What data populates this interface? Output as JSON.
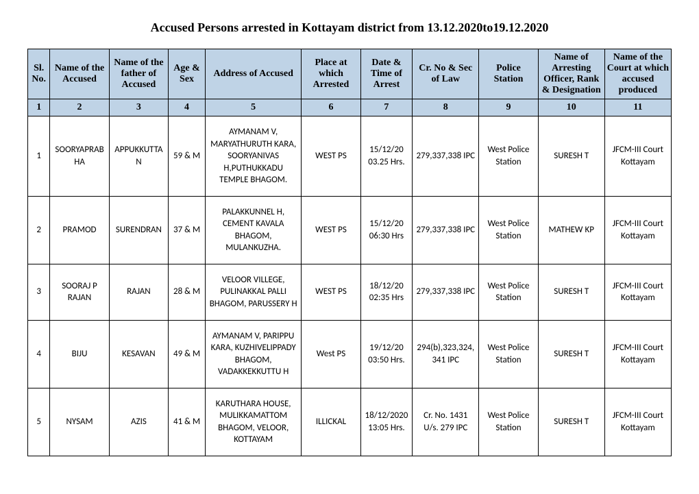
{
  "title": "Accused Persons arrested in  Kottayam  district from  13.12.2020to19.12.2020",
  "table": {
    "header_bg": "#bfd3e6",
    "border_color": "#000000",
    "columns": [
      {
        "label": "Sl. No.",
        "num": "1"
      },
      {
        "label": "Name of the Accused",
        "num": "2"
      },
      {
        "label": "Name of the father of Accused",
        "num": "3"
      },
      {
        "label": "Age & Sex",
        "num": "4"
      },
      {
        "label": "Address of Accused",
        "num": "5"
      },
      {
        "label": "Place at which Arrested",
        "num": "6"
      },
      {
        "label": "Date & Time of Arrest",
        "num": "7"
      },
      {
        "label": "Cr. No & Sec of Law",
        "num": "8"
      },
      {
        "label": "Police Station",
        "num": "9"
      },
      {
        "label": "Name of Arresting Officer, Rank & Designation",
        "num": "10"
      },
      {
        "label": "Name of the Court at which accused produced",
        "num": "11"
      }
    ],
    "rows": [
      {
        "sl": "1",
        "name": "SOORYAPRABHA",
        "father": "APPUKKUTTAN",
        "age_sex": "59 & M",
        "address": "AYMANAM V, MARYATHURUTH KARA, SOORYANIVAS H,PUTHUKKADU TEMPLE BHAGOM.",
        "place": "WEST PS",
        "datetime": "15/12/20 03.25 Hrs.",
        "crno": "279,337,338 IPC",
        "ps": "West Police Station",
        "officer": "SURESH T",
        "court": "JFCM-III Court Kottayam"
      },
      {
        "sl": "2",
        "name": "PRAMOD",
        "father": "SURENDRAN",
        "age_sex": "37 & M",
        "address": "PALAKKUNNEL H, CEMENT KAVALA BHAGOM, MULANKUZHA.",
        "place": "WEST PS",
        "datetime": "15/12/20 06:30 Hrs",
        "crno": "279,337,338 IPC",
        "ps": "West Police Station",
        "officer": "MATHEW KP",
        "court": "JFCM-III Court Kottayam"
      },
      {
        "sl": "3",
        "name": "SOORAJ P RAJAN",
        "father": "RAJAN",
        "age_sex": "28 & M",
        "address": "VELOOR VILLEGE, PULINAKKAL PALLI BHAGOM, PARUSSERY H",
        "place": "WEST PS",
        "datetime": "18/12/20 02:35 Hrs",
        "crno": "279,337,338 IPC",
        "ps": "West Police Station",
        "officer": "SURESH T",
        "court": "JFCM-III Court Kottayam"
      },
      {
        "sl": "4",
        "name": "BIJU",
        "father": "KESAVAN",
        "age_sex": "49 & M",
        "address": "AYMANAM V, PARIPPU KARA, KUZHIVELIPPADY BHAGOM, VADAKKEKKUTTU H",
        "place": "West PS",
        "datetime": "19/12/20 03:50 Hrs.",
        "crno": "294(b),323,324,341 IPC",
        "ps": "West Police Station",
        "officer": "SURESH T",
        "court": "JFCM-III Court Kottayam"
      },
      {
        "sl": "5",
        "name": "NYSAM",
        "father": "AZIS",
        "age_sex": "41 & M",
        "address": "KARUTHARA HOUSE, MULIKKAMATTOM BHAGOM, VELOOR, KOTTAYAM",
        "place": "ILLICKAL",
        "datetime": "18/12/2020 13:05 Hrs.",
        "crno": "Cr. No. 1431 U/s. 279 IPC",
        "ps": "West Police Station",
        "officer": "SURESH T",
        "court": "JFCM-III Court Kottayam"
      }
    ]
  }
}
